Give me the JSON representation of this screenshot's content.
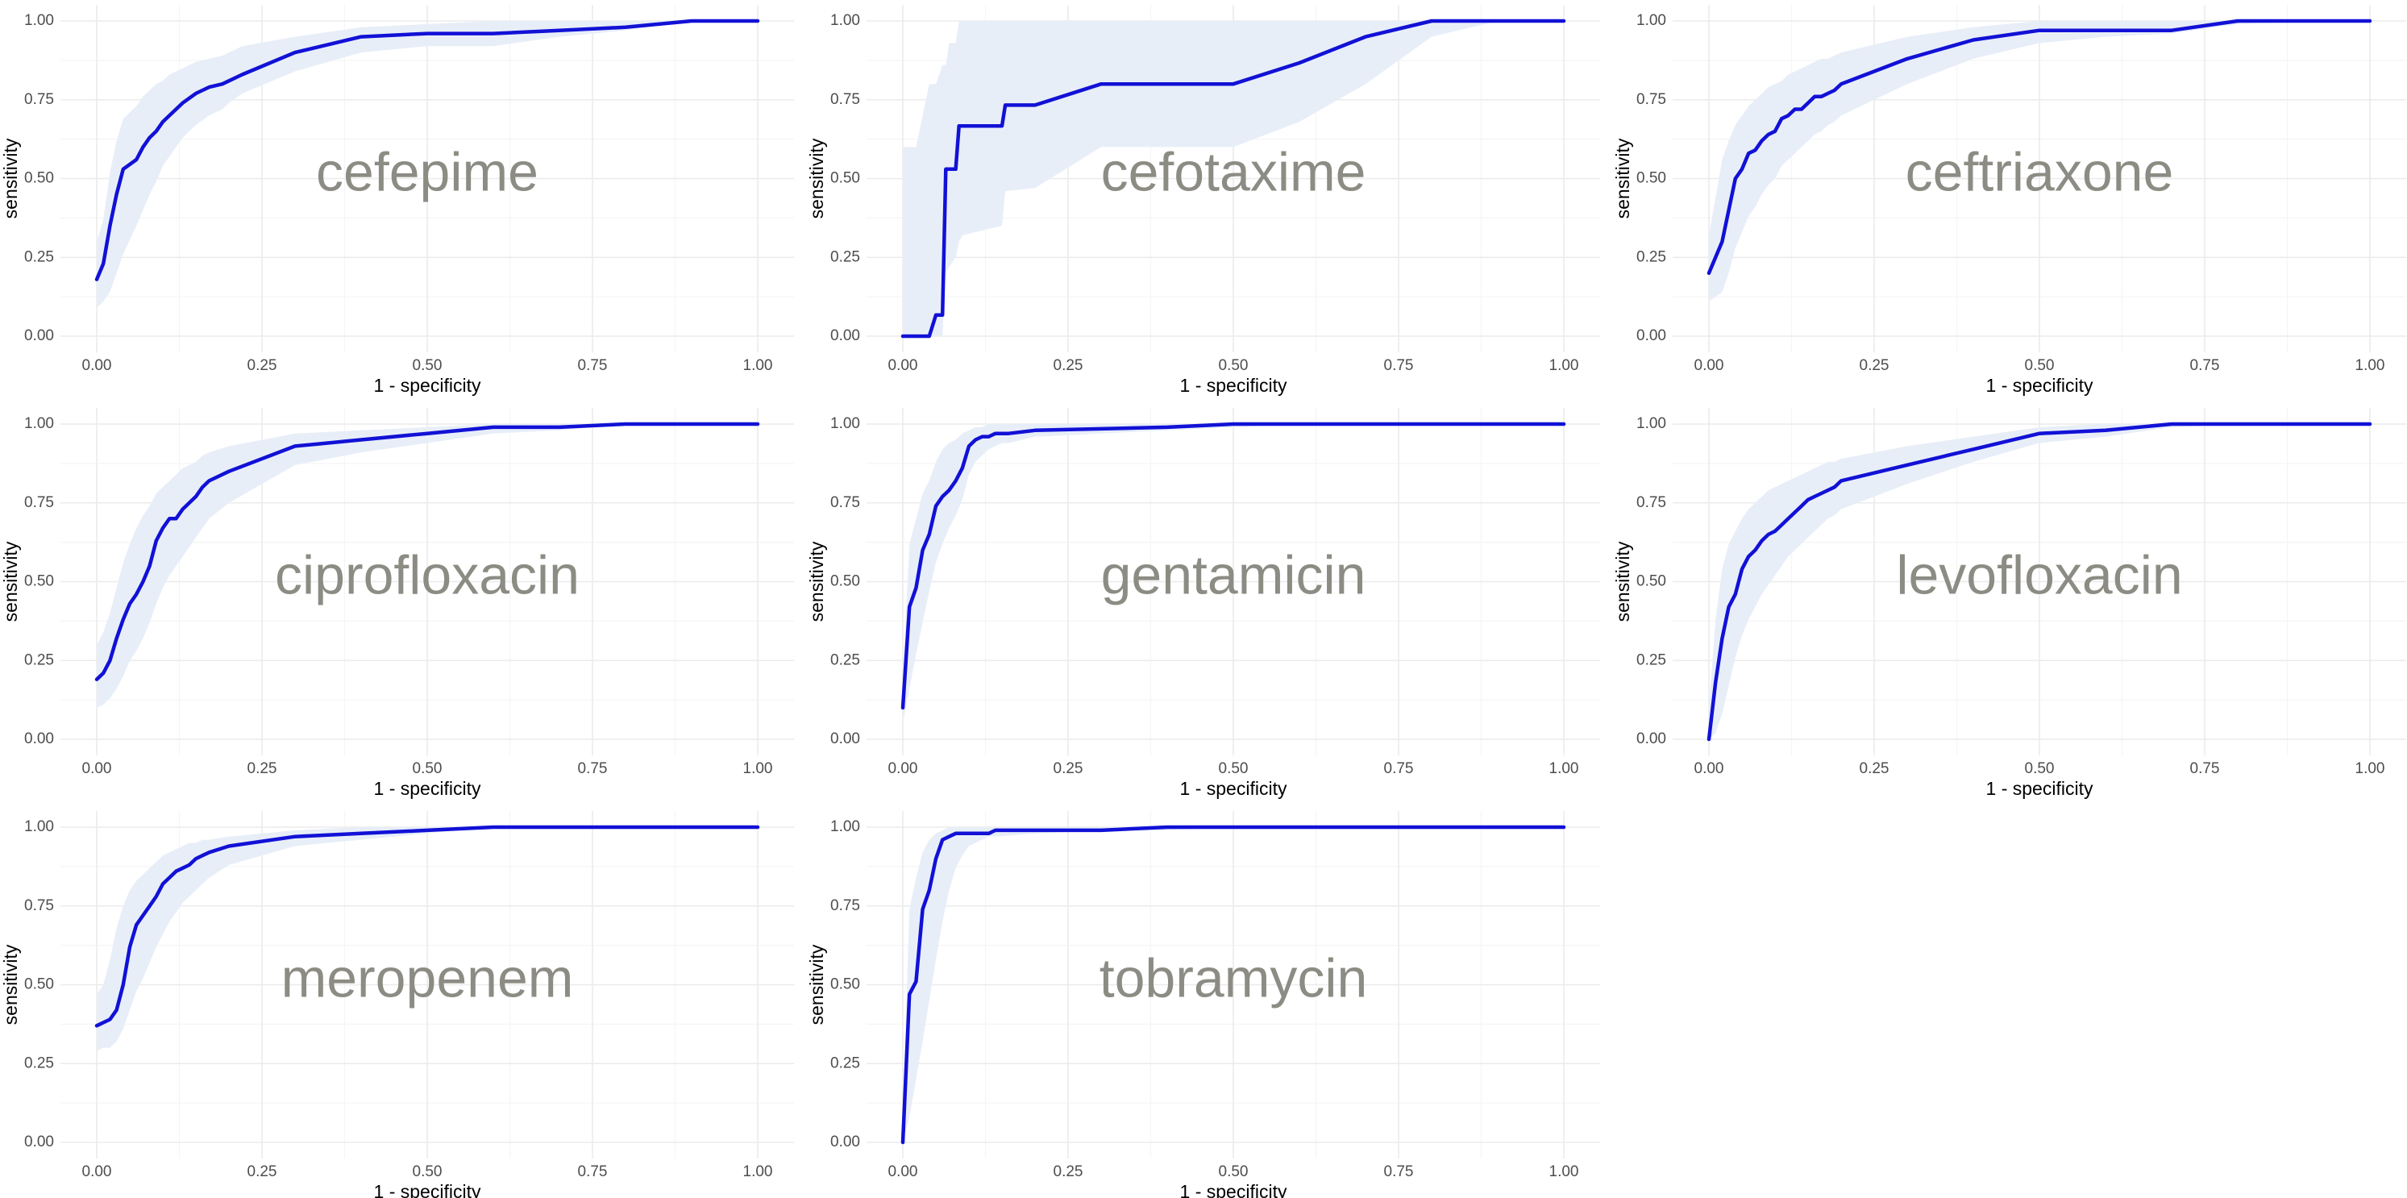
{
  "colors": {
    "line": "#1111d6",
    "ribbon": "#e8eef8",
    "grid_major": "#ebebeb",
    "grid_minor": "#f5f5f5",
    "label": "#8c8c84"
  },
  "chart_data": [
    {
      "type": "line",
      "label": "cefepime",
      "xlabel": "1 - specificity",
      "ylabel": "sensitivity",
      "xlim": [
        0,
        1
      ],
      "ylim": [
        0,
        1
      ],
      "xticks": [
        "0.00",
        "0.25",
        "0.50",
        "0.75",
        "1.00"
      ],
      "yticks": [
        "0.00",
        "0.25",
        "0.50",
        "0.75",
        "1.00"
      ],
      "grid": true,
      "x": [
        0,
        0.01,
        0.02,
        0.03,
        0.04,
        0.06,
        0.07,
        0.08,
        0.09,
        0.1,
        0.11,
        0.12,
        0.13,
        0.15,
        0.17,
        0.19,
        0.2,
        0.22,
        0.3,
        0.4,
        0.5,
        0.6,
        0.7,
        0.8,
        0.9,
        1.0
      ],
      "y": [
        0.18,
        0.23,
        0.35,
        0.45,
        0.53,
        0.56,
        0.6,
        0.63,
        0.65,
        0.68,
        0.7,
        0.72,
        0.74,
        0.77,
        0.79,
        0.8,
        0.81,
        0.83,
        0.9,
        0.95,
        0.96,
        0.96,
        0.97,
        0.98,
        1.0,
        1.0
      ],
      "lower": [
        0.09,
        0.11,
        0.14,
        0.2,
        0.26,
        0.35,
        0.4,
        0.45,
        0.49,
        0.54,
        0.57,
        0.6,
        0.63,
        0.67,
        0.7,
        0.72,
        0.74,
        0.77,
        0.84,
        0.9,
        0.92,
        0.92,
        0.95,
        0.97,
        1.0,
        1.0
      ],
      "upper": [
        0.3,
        0.37,
        0.52,
        0.62,
        0.69,
        0.73,
        0.76,
        0.78,
        0.8,
        0.81,
        0.83,
        0.84,
        0.85,
        0.87,
        0.88,
        0.89,
        0.9,
        0.92,
        0.95,
        0.98,
        0.99,
        1.0,
        1.0,
        1.0,
        1.0,
        1.0
      ]
    },
    {
      "type": "line",
      "label": "cefotaxime",
      "xlabel": "1 - specificity",
      "ylabel": "sensitivity",
      "xlim": [
        0,
        1
      ],
      "ylim": [
        0,
        1
      ],
      "xticks": [
        "0.00",
        "0.25",
        "0.50",
        "0.75",
        "1.00"
      ],
      "yticks": [
        "0.00",
        "0.25",
        "0.50",
        "0.75",
        "1.00"
      ],
      "grid": true,
      "x": [
        0,
        0.02,
        0.04,
        0.05,
        0.06,
        0.065,
        0.07,
        0.08,
        0.085,
        0.09,
        0.15,
        0.155,
        0.2,
        0.3,
        0.4,
        0.5,
        0.6,
        0.7,
        0.8,
        0.9,
        1.0
      ],
      "y": [
        0.0,
        0.0,
        0.0,
        0.067,
        0.067,
        0.53,
        0.53,
        0.53,
        0.667,
        0.667,
        0.667,
        0.733,
        0.733,
        0.8,
        0.8,
        0.8,
        0.867,
        0.95,
        1.0,
        1.0,
        1.0
      ],
      "lower": [
        0.0,
        0.0,
        0.0,
        0.0,
        0.0,
        0.2,
        0.22,
        0.25,
        0.3,
        0.32,
        0.35,
        0.46,
        0.47,
        0.6,
        0.6,
        0.6,
        0.68,
        0.8,
        0.95,
        1.0,
        1.0
      ],
      "upper": [
        0.6,
        0.6,
        0.8,
        0.8,
        0.86,
        0.86,
        0.93,
        0.93,
        1.0,
        1.0,
        1.0,
        1.0,
        1.0,
        1.0,
        1.0,
        1.0,
        1.0,
        1.0,
        1.0,
        1.0,
        1.0
      ]
    },
    {
      "type": "line",
      "label": "ceftriaxone",
      "xlabel": "1 - specificity",
      "ylabel": "sensitivity",
      "xlim": [
        0,
        1
      ],
      "ylim": [
        0,
        1
      ],
      "xticks": [
        "0.00",
        "0.25",
        "0.50",
        "0.75",
        "1.00"
      ],
      "yticks": [
        "0.00",
        "0.25",
        "0.50",
        "0.75",
        "1.00"
      ],
      "grid": true,
      "x": [
        0,
        0.02,
        0.03,
        0.04,
        0.05,
        0.06,
        0.07,
        0.08,
        0.09,
        0.1,
        0.11,
        0.12,
        0.13,
        0.14,
        0.15,
        0.16,
        0.17,
        0.18,
        0.19,
        0.2,
        0.3,
        0.4,
        0.5,
        0.6,
        0.7,
        0.8,
        0.9,
        1.0
      ],
      "y": [
        0.2,
        0.3,
        0.4,
        0.5,
        0.53,
        0.58,
        0.59,
        0.62,
        0.64,
        0.65,
        0.69,
        0.7,
        0.72,
        0.72,
        0.74,
        0.76,
        0.76,
        0.77,
        0.78,
        0.8,
        0.88,
        0.94,
        0.97,
        0.97,
        0.97,
        1.0,
        1.0,
        1.0
      ],
      "lower": [
        0.11,
        0.14,
        0.2,
        0.28,
        0.33,
        0.38,
        0.41,
        0.45,
        0.48,
        0.5,
        0.54,
        0.56,
        0.58,
        0.6,
        0.62,
        0.64,
        0.65,
        0.67,
        0.68,
        0.7,
        0.8,
        0.88,
        0.93,
        0.95,
        0.96,
        0.99,
        1.0,
        1.0
      ],
      "upper": [
        0.32,
        0.56,
        0.62,
        0.67,
        0.7,
        0.73,
        0.75,
        0.77,
        0.79,
        0.8,
        0.81,
        0.83,
        0.84,
        0.85,
        0.86,
        0.87,
        0.88,
        0.88,
        0.89,
        0.9,
        0.95,
        0.98,
        1.0,
        1.0,
        1.0,
        1.0,
        1.0,
        1.0
      ]
    },
    {
      "type": "line",
      "label": "ciprofloxacin",
      "xlabel": "1 - specificity",
      "ylabel": "sensitivity",
      "xlim": [
        0,
        1
      ],
      "ylim": [
        0,
        1
      ],
      "xticks": [
        "0.00",
        "0.25",
        "0.50",
        "0.75",
        "1.00"
      ],
      "yticks": [
        "0.00",
        "0.25",
        "0.50",
        "0.75",
        "1.00"
      ],
      "grid": true,
      "x": [
        0,
        0.01,
        0.02,
        0.03,
        0.04,
        0.05,
        0.06,
        0.07,
        0.08,
        0.09,
        0.1,
        0.11,
        0.12,
        0.13,
        0.14,
        0.15,
        0.16,
        0.17,
        0.2,
        0.3,
        0.4,
        0.5,
        0.6,
        0.7,
        0.8,
        0.9,
        1.0
      ],
      "y": [
        0.19,
        0.21,
        0.25,
        0.32,
        0.38,
        0.43,
        0.46,
        0.5,
        0.55,
        0.63,
        0.67,
        0.7,
        0.7,
        0.73,
        0.75,
        0.77,
        0.8,
        0.82,
        0.85,
        0.93,
        0.95,
        0.97,
        0.99,
        0.99,
        1.0,
        1.0,
        1.0
      ],
      "lower": [
        0.1,
        0.11,
        0.13,
        0.16,
        0.2,
        0.25,
        0.28,
        0.32,
        0.37,
        0.43,
        0.48,
        0.52,
        0.55,
        0.58,
        0.61,
        0.64,
        0.67,
        0.7,
        0.75,
        0.87,
        0.91,
        0.94,
        0.97,
        0.98,
        1.0,
        1.0,
        1.0
      ],
      "upper": [
        0.3,
        0.34,
        0.4,
        0.48,
        0.56,
        0.62,
        0.67,
        0.71,
        0.74,
        0.78,
        0.8,
        0.82,
        0.84,
        0.86,
        0.87,
        0.88,
        0.9,
        0.91,
        0.93,
        0.97,
        0.98,
        0.99,
        1.0,
        1.0,
        1.0,
        1.0,
        1.0
      ]
    },
    {
      "type": "line",
      "label": "gentamicin",
      "xlabel": "1 - specificity",
      "ylabel": "sensitivity",
      "xlim": [
        0,
        1
      ],
      "ylim": [
        0,
        1
      ],
      "xticks": [
        "0.00",
        "0.25",
        "0.50",
        "0.75",
        "1.00"
      ],
      "yticks": [
        "0.00",
        "0.25",
        "0.50",
        "0.75",
        "1.00"
      ],
      "grid": true,
      "x": [
        0,
        0.01,
        0.02,
        0.03,
        0.04,
        0.05,
        0.06,
        0.07,
        0.08,
        0.09,
        0.1,
        0.11,
        0.12,
        0.13,
        0.14,
        0.15,
        0.16,
        0.2,
        0.3,
        0.4,
        0.5,
        0.6,
        0.7,
        0.8,
        0.9,
        1.0
      ],
      "y": [
        0.1,
        0.42,
        0.48,
        0.6,
        0.65,
        0.74,
        0.77,
        0.79,
        0.82,
        0.86,
        0.93,
        0.95,
        0.96,
        0.96,
        0.97,
        0.97,
        0.97,
        0.98,
        0.985,
        0.99,
        1.0,
        1.0,
        1.0,
        1.0,
        1.0,
        1.0
      ],
      "lower": [
        0.05,
        0.16,
        0.27,
        0.37,
        0.47,
        0.56,
        0.62,
        0.67,
        0.71,
        0.76,
        0.84,
        0.88,
        0.9,
        0.92,
        0.93,
        0.94,
        0.94,
        0.96,
        0.97,
        0.98,
        0.99,
        1.0,
        1.0,
        1.0,
        1.0,
        1.0
      ],
      "upper": [
        0.2,
        0.62,
        0.7,
        0.78,
        0.82,
        0.88,
        0.92,
        0.94,
        0.95,
        0.97,
        0.98,
        0.99,
        0.99,
        1.0,
        1.0,
        1.0,
        1.0,
        1.0,
        1.0,
        1.0,
        1.0,
        1.0,
        1.0,
        1.0,
        1.0,
        1.0
      ]
    },
    {
      "type": "line",
      "label": "levofloxacin",
      "xlabel": "1 - specificity",
      "ylabel": "sensitivity",
      "xlim": [
        0,
        1
      ],
      "ylim": [
        0,
        1
      ],
      "xticks": [
        "0.00",
        "0.25",
        "0.50",
        "0.75",
        "1.00"
      ],
      "yticks": [
        "0.00",
        "0.25",
        "0.50",
        "0.75",
        "1.00"
      ],
      "grid": true,
      "x": [
        0,
        0.01,
        0.02,
        0.03,
        0.04,
        0.05,
        0.06,
        0.07,
        0.08,
        0.09,
        0.1,
        0.11,
        0.12,
        0.13,
        0.14,
        0.15,
        0.16,
        0.17,
        0.18,
        0.19,
        0.2,
        0.3,
        0.4,
        0.5,
        0.6,
        0.7,
        0.8,
        0.9,
        1.0
      ],
      "y": [
        0.0,
        0.18,
        0.32,
        0.42,
        0.46,
        0.54,
        0.58,
        0.6,
        0.63,
        0.65,
        0.66,
        0.68,
        0.7,
        0.72,
        0.74,
        0.76,
        0.77,
        0.78,
        0.79,
        0.8,
        0.82,
        0.87,
        0.92,
        0.97,
        0.98,
        1.0,
        1.0,
        1.0,
        1.0
      ],
      "lower": [
        0.0,
        0.02,
        0.08,
        0.17,
        0.26,
        0.33,
        0.38,
        0.42,
        0.46,
        0.49,
        0.52,
        0.55,
        0.58,
        0.6,
        0.62,
        0.64,
        0.66,
        0.68,
        0.7,
        0.71,
        0.73,
        0.81,
        0.88,
        0.94,
        0.96,
        0.99,
        1.0,
        1.0,
        1.0
      ],
      "upper": [
        0.1,
        0.38,
        0.54,
        0.62,
        0.66,
        0.7,
        0.73,
        0.75,
        0.77,
        0.79,
        0.8,
        0.81,
        0.82,
        0.83,
        0.84,
        0.85,
        0.86,
        0.87,
        0.88,
        0.88,
        0.89,
        0.93,
        0.96,
        0.99,
        1.0,
        1.0,
        1.0,
        1.0,
        1.0
      ]
    },
    {
      "type": "line",
      "label": "meropenem",
      "xlabel": "1 - specificity",
      "ylabel": "sensitivity",
      "xlim": [
        0,
        1
      ],
      "ylim": [
        0,
        1
      ],
      "xticks": [
        "0.00",
        "0.25",
        "0.50",
        "0.75",
        "1.00"
      ],
      "yticks": [
        "0.00",
        "0.25",
        "0.50",
        "0.75",
        "1.00"
      ],
      "grid": true,
      "x": [
        0,
        0.01,
        0.02,
        0.03,
        0.04,
        0.05,
        0.06,
        0.07,
        0.08,
        0.09,
        0.1,
        0.11,
        0.12,
        0.13,
        0.14,
        0.15,
        0.16,
        0.17,
        0.2,
        0.3,
        0.4,
        0.5,
        0.6,
        0.7,
        0.8,
        0.9,
        1.0
      ],
      "y": [
        0.37,
        0.38,
        0.39,
        0.42,
        0.5,
        0.62,
        0.69,
        0.72,
        0.75,
        0.78,
        0.82,
        0.84,
        0.86,
        0.87,
        0.88,
        0.9,
        0.91,
        0.92,
        0.94,
        0.97,
        0.98,
        0.99,
        1.0,
        1.0,
        1.0,
        1.0,
        1.0
      ],
      "lower": [
        0.29,
        0.3,
        0.3,
        0.32,
        0.36,
        0.42,
        0.48,
        0.52,
        0.57,
        0.62,
        0.66,
        0.7,
        0.73,
        0.76,
        0.78,
        0.8,
        0.82,
        0.84,
        0.88,
        0.94,
        0.96,
        0.98,
        1.0,
        1.0,
        1.0,
        1.0,
        1.0
      ],
      "upper": [
        0.47,
        0.5,
        0.58,
        0.68,
        0.75,
        0.8,
        0.83,
        0.85,
        0.87,
        0.89,
        0.91,
        0.92,
        0.93,
        0.94,
        0.95,
        0.95,
        0.96,
        0.96,
        0.97,
        0.99,
        1.0,
        1.0,
        1.0,
        1.0,
        1.0,
        1.0,
        1.0
      ]
    },
    {
      "type": "line",
      "label": "tobramycin",
      "xlabel": "1 - specificity",
      "ylabel": "sensitivity",
      "xlim": [
        0,
        1
      ],
      "ylim": [
        0,
        1
      ],
      "xticks": [
        "0.00",
        "0.25",
        "0.50",
        "0.75",
        "1.00"
      ],
      "yticks": [
        "0.00",
        "0.25",
        "0.50",
        "0.75",
        "1.00"
      ],
      "grid": true,
      "x": [
        0,
        0.01,
        0.02,
        0.03,
        0.04,
        0.05,
        0.06,
        0.07,
        0.08,
        0.09,
        0.1,
        0.12,
        0.13,
        0.14,
        0.2,
        0.3,
        0.4,
        0.5,
        0.6,
        0.7,
        0.8,
        0.9,
        1.0
      ],
      "y": [
        0.0,
        0.47,
        0.51,
        0.74,
        0.8,
        0.9,
        0.96,
        0.97,
        0.98,
        0.98,
        0.98,
        0.98,
        0.98,
        0.99,
        0.99,
        0.99,
        1.0,
        1.0,
        1.0,
        1.0,
        1.0,
        1.0,
        1.0
      ],
      "lower": [
        0.0,
        0.08,
        0.2,
        0.32,
        0.45,
        0.58,
        0.7,
        0.8,
        0.87,
        0.91,
        0.94,
        0.96,
        0.97,
        0.97,
        0.98,
        0.99,
        0.99,
        1.0,
        1.0,
        1.0,
        1.0,
        1.0,
        1.0
      ],
      "upper": [
        0.1,
        0.74,
        0.84,
        0.92,
        0.96,
        0.98,
        0.99,
        1.0,
        1.0,
        1.0,
        1.0,
        1.0,
        1.0,
        1.0,
        1.0,
        1.0,
        1.0,
        1.0,
        1.0,
        1.0,
        1.0,
        1.0,
        1.0
      ]
    }
  ]
}
